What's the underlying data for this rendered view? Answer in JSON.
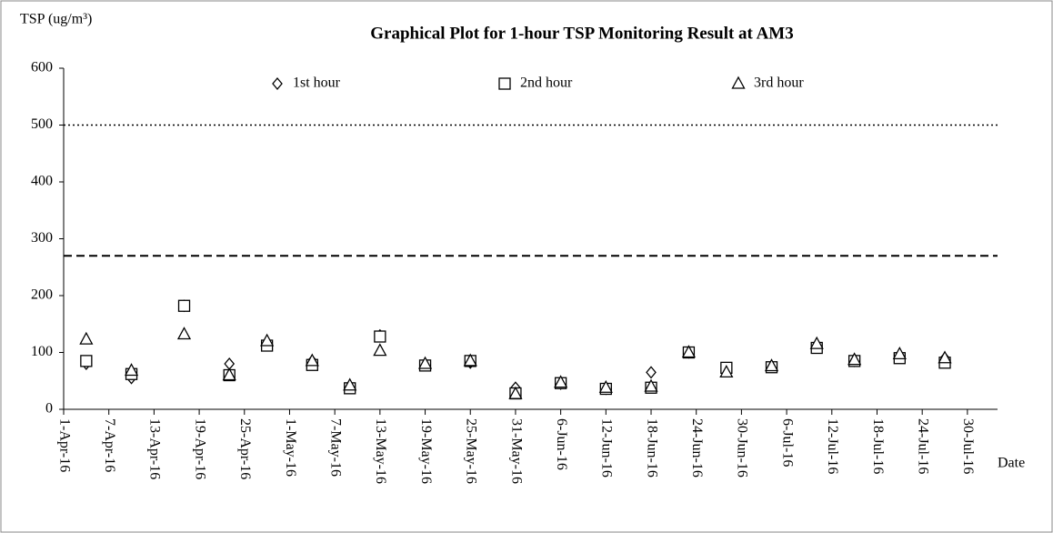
{
  "chart_data": {
    "type": "scatter",
    "title": "Graphical Plot for 1-hour TSP Monitoring Result at AM3",
    "y_label": "TSP (ug/m³)",
    "x_label": "Date",
    "x": [
      "2016-04-04",
      "2016-04-10",
      "2016-04-17",
      "2016-04-23",
      "2016-04-28",
      "2016-05-04",
      "2016-05-09",
      "2016-05-13",
      "2016-05-19",
      "2016-05-25",
      "2016-05-31",
      "2016-06-06",
      "2016-06-12",
      "2016-06-18",
      "2016-06-23",
      "2016-06-28",
      "2016-07-04",
      "2016-07-10",
      "2016-07-15",
      "2016-07-21",
      "2016-07-27"
    ],
    "series": [
      {
        "name": "1st hour",
        "marker": "diamond",
        "color": "#000000",
        "values": [
          80,
          55,
          182,
          80,
          115,
          85,
          40,
          130,
          80,
          82,
          38,
          45,
          36,
          65,
          100,
          70,
          75,
          112,
          85,
          95,
          90
        ]
      },
      {
        "name": "2nd hour",
        "marker": "square",
        "color": "#000000",
        "values": [
          85,
          62,
          182,
          60,
          112,
          78,
          37,
          128,
          77,
          85,
          28,
          46,
          36,
          38,
          100,
          73,
          74,
          108,
          85,
          90,
          82
        ]
      },
      {
        "name": "3rd hour",
        "marker": "triangle",
        "color": "#000000",
        "values": [
          123,
          68,
          132,
          60,
          120,
          85,
          42,
          103,
          80,
          85,
          27,
          47,
          38,
          40,
          100,
          65,
          76,
          115,
          87,
          97,
          90
        ]
      }
    ],
    "reference_lines": [
      {
        "value": 500,
        "style": "dotted"
      },
      {
        "value": 270,
        "style": "dashed"
      }
    ],
    "xlim": [
      "2016-04-01",
      "2016-08-03"
    ],
    "xticks": [
      {
        "value": "2016-04-01",
        "label": "1-Apr-16"
      },
      {
        "value": "2016-04-07",
        "label": "7-Apr-16"
      },
      {
        "value": "2016-04-13",
        "label": "13-Apr-16"
      },
      {
        "value": "2016-04-19",
        "label": "19-Apr-16"
      },
      {
        "value": "2016-04-25",
        "label": "25-Apr-16"
      },
      {
        "value": "2016-05-01",
        "label": "1-May-16"
      },
      {
        "value": "2016-05-07",
        "label": "7-May-16"
      },
      {
        "value": "2016-05-13",
        "label": "13-May-16"
      },
      {
        "value": "2016-05-19",
        "label": "19-May-16"
      },
      {
        "value": "2016-05-25",
        "label": "25-May-16"
      },
      {
        "value": "2016-05-31",
        "label": "31-May-16"
      },
      {
        "value": "2016-06-06",
        "label": "6-Jun-16"
      },
      {
        "value": "2016-06-12",
        "label": "12-Jun-16"
      },
      {
        "value": "2016-06-18",
        "label": "18-Jun-16"
      },
      {
        "value": "2016-06-24",
        "label": "24-Jun-16"
      },
      {
        "value": "2016-06-30",
        "label": "30-Jun-16"
      },
      {
        "value": "2016-07-06",
        "label": "6-Jul-16"
      },
      {
        "value": "2016-07-12",
        "label": "12-Jul-16"
      },
      {
        "value": "2016-07-18",
        "label": "18-Jul-16"
      },
      {
        "value": "2016-07-24",
        "label": "24-Jul-16"
      },
      {
        "value": "2016-07-30",
        "label": "30-Jul-16"
      }
    ],
    "ylim": [
      0,
      600
    ],
    "yticks": [
      0,
      100,
      200,
      300,
      400,
      500,
      600
    ],
    "legend": "top",
    "grid": false
  }
}
